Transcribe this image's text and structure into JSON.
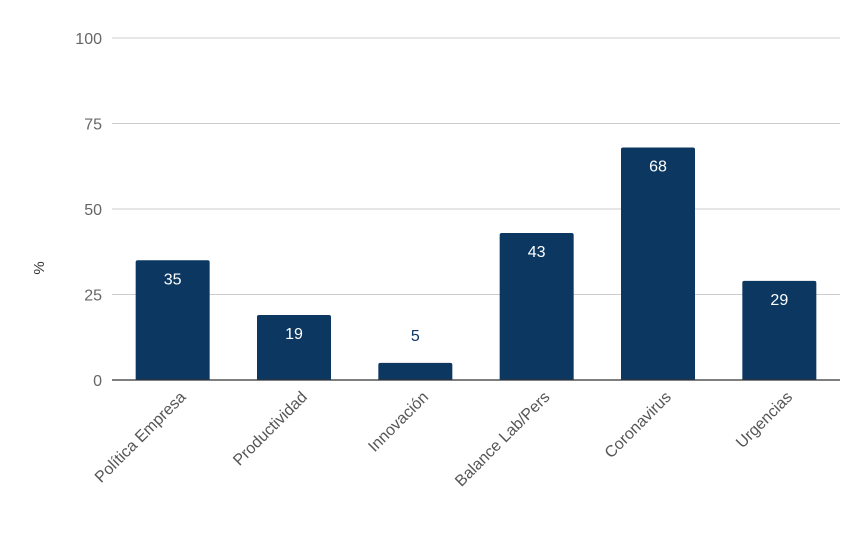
{
  "chart_data": {
    "type": "bar",
    "categories": [
      "Política Empresa",
      "Productividad",
      "Innovación",
      "Balance Lab/Pers",
      "Coronavirus",
      "Urgencias"
    ],
    "values": [
      35,
      19,
      5,
      43,
      68,
      29
    ],
    "ylabel": "%",
    "ylim": [
      0,
      100
    ],
    "yticks": [
      "0",
      "25",
      "50",
      "75",
      "100"
    ],
    "data_labels": [
      "35",
      "19",
      "5",
      "43",
      "68",
      "29"
    ],
    "grid": true,
    "bar_color": "#0b3761",
    "grid_color": "#cccccc",
    "axis_color": "#333333",
    "label_inside_color": "#ffffff",
    "label_outside_color": "#0b3761"
  }
}
